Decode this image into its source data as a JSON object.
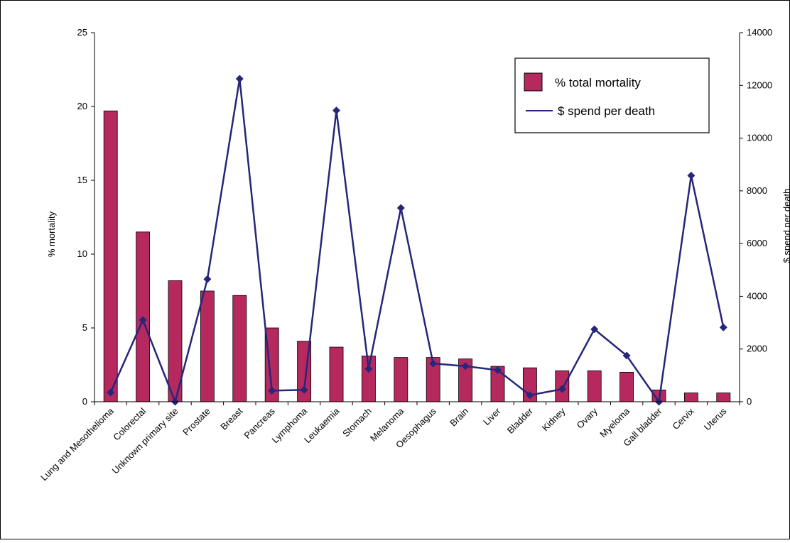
{
  "chart_data": {
    "type": "bar+line",
    "categories": [
      "Lung and Mesothelioma",
      "Colorectal",
      "Unknown primary site",
      "Prostate",
      "Breast",
      "Pancreas",
      "Lymphoma",
      "Leukaemia",
      "Stomach",
      "Melanoma",
      "Oesophagus",
      "Brain",
      "Liver",
      "Bladder",
      "Kidney",
      "Ovary",
      "Myeloma",
      "Gall bladder",
      "Cervix",
      "Uterus"
    ],
    "series": [
      {
        "name": "% total mortality",
        "type": "bar",
        "axis": "left",
        "color": "#b5295f",
        "values": [
          19.7,
          11.5,
          8.2,
          7.5,
          7.2,
          5.0,
          4.1,
          3.7,
          3.1,
          3.0,
          3.0,
          2.9,
          2.4,
          2.3,
          2.1,
          2.1,
          2.0,
          0.8,
          0.6,
          0.6
        ]
      },
      {
        "name": "$ spend per death",
        "type": "line",
        "axis": "right",
        "color": "#26267a",
        "values": [
          350,
          3100,
          0,
          4650,
          12250,
          420,
          450,
          11050,
          1250,
          7350,
          1450,
          1350,
          1200,
          250,
          480,
          2750,
          1750,
          0,
          8580,
          2820
        ]
      }
    ],
    "ylabel": "% mortality",
    "y2label": "$ spend per death",
    "ylim": [
      0,
      25
    ],
    "y2lim": [
      0,
      14000
    ],
    "yticks": [
      "0",
      "5",
      "10",
      "15",
      "20",
      "25"
    ],
    "y2ticks": [
      "0",
      "2000",
      "4000",
      "6000",
      "8000",
      "10000",
      "12000",
      "14000"
    ],
    "grid": false,
    "legend_position": "top-right"
  }
}
